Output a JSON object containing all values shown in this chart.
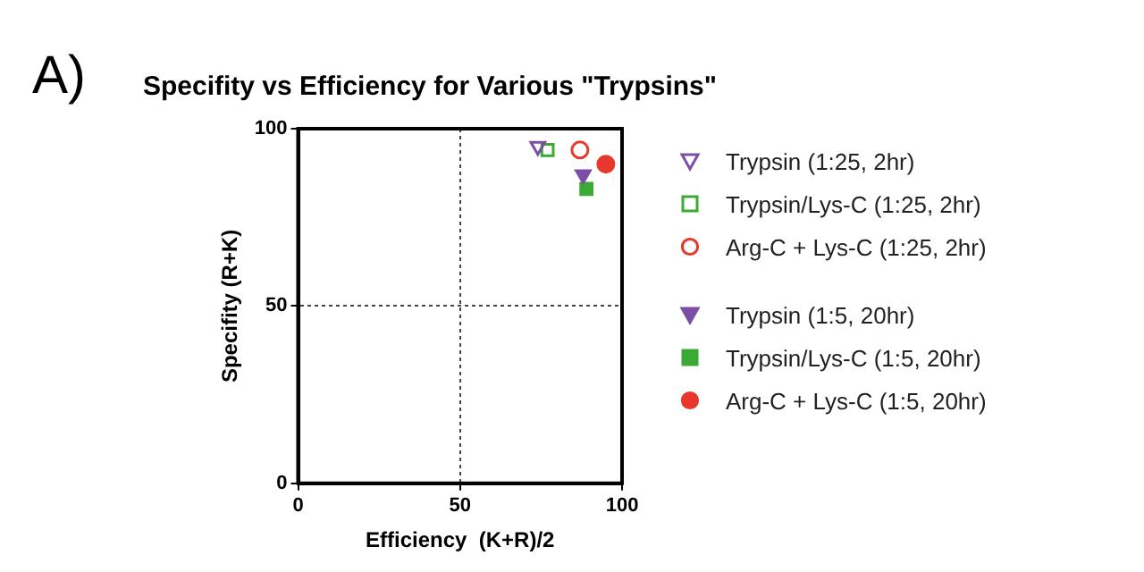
{
  "chart_data": {
    "type": "scatter",
    "title": "Specifity vs Efficiency for Various \"Trypsins\"",
    "xlabel": "Efficiency  (K+R)/2",
    "ylabel": "Specifity (R+K)",
    "annotations": [
      "A)"
    ],
    "xlim": [
      0,
      100
    ],
    "xticks": [
      0,
      50,
      100
    ],
    "ylim": [
      0,
      100
    ],
    "yticks": [
      0,
      50,
      100
    ],
    "grid": true,
    "legend": "right",
    "series": [
      {
        "name": "Trypsin (1:25, 2hr)",
        "color": "#7b4fa6",
        "marker": "triangle-open",
        "x": [
          74
        ],
        "values": [
          95
        ]
      },
      {
        "name": "Trypsin/Lys-C (1:25, 2hr)",
        "color": "#3aaa35",
        "marker": "square-open",
        "x": [
          77
        ],
        "values": [
          94
        ]
      },
      {
        "name": "Arg-C + Lys-C (1:25, 2hr)",
        "color": "#e8382e",
        "marker": "circle-open",
        "x": [
          87
        ],
        "values": [
          94
        ]
      },
      {
        "name": "Trypsin (1:5, 20hr)",
        "color": "#7b4fa6",
        "marker": "triangle",
        "x": [
          88
        ],
        "values": [
          87
        ]
      },
      {
        "name": "Trypsin/Lys-C (1:5, 20hr)",
        "color": "#3aaa35",
        "marker": "square",
        "x": [
          89
        ],
        "values": [
          83
        ]
      },
      {
        "name": "Arg-C + Lys-C (1:5, 20hr)",
        "color": "#e8382e",
        "marker": "circle",
        "x": [
          95
        ],
        "values": [
          90
        ]
      }
    ]
  }
}
